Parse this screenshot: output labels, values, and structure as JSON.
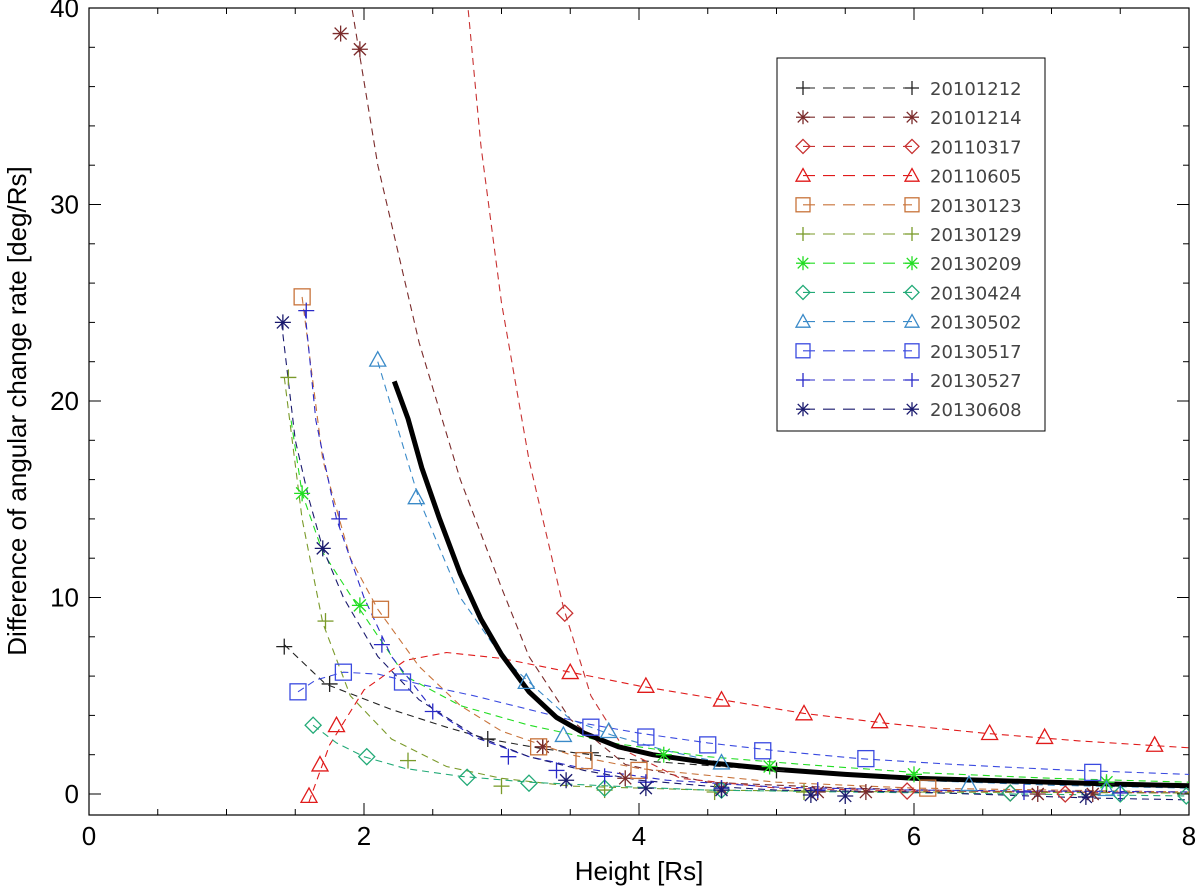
{
  "chart_data": {
    "type": "line",
    "title": "",
    "xlabel": "Height [Rs]",
    "ylabel": "Difference of angular change rate [deg/Rs]",
    "xlim": [
      0,
      8
    ],
    "ylim": [
      -1,
      40
    ],
    "xticks": [
      0,
      2,
      4,
      6,
      8
    ],
    "yticks": [
      0,
      10,
      20,
      30,
      40
    ],
    "xtick_labels": [
      "0",
      "2",
      "4",
      "6",
      "8"
    ],
    "ytick_labels": [
      "0",
      "10",
      "20",
      "30",
      "40"
    ],
    "grid": false,
    "legend_position": "top-right",
    "series": [
      {
        "name": "20101212",
        "color": "#222222",
        "marker": "plus",
        "curve": [
          [
            1.42,
            7.6
          ],
          [
            1.72,
            5.6
          ],
          [
            2.2,
            4.3
          ],
          [
            2.6,
            3.4
          ],
          [
            2.9,
            2.8
          ],
          [
            3.3,
            2.3
          ],
          [
            4,
            1.7
          ],
          [
            5,
            1.2
          ],
          [
            6,
            0.8
          ],
          [
            7,
            0.6
          ],
          [
            8,
            0.5
          ]
        ],
        "points": [
          [
            1.42,
            7.5
          ],
          [
            1.75,
            5.6
          ],
          [
            2.9,
            2.8
          ],
          [
            3.3,
            2.4
          ],
          [
            3.65,
            2.1
          ],
          [
            5,
            1.2
          ],
          [
            7.4,
            0.5
          ]
        ]
      },
      {
        "name": "20101214",
        "color": "#7a2a2a",
        "marker": "asterisk",
        "curve": [
          [
            1.9,
            40.5
          ],
          [
            2.1,
            32
          ],
          [
            2.4,
            23
          ],
          [
            2.7,
            16
          ],
          [
            3.0,
            10.5
          ],
          [
            3.2,
            7
          ],
          [
            3.5,
            3.8
          ],
          [
            3.9,
            1.5
          ],
          [
            4.5,
            0.6
          ],
          [
            5.5,
            0.3
          ],
          [
            6.5,
            0.15
          ],
          [
            8,
            0.05
          ]
        ],
        "points": [
          [
            1.83,
            38.7
          ],
          [
            1.97,
            37.9
          ],
          [
            3.3,
            2.4
          ],
          [
            3.9,
            0.8
          ],
          [
            4.6,
            0.3
          ],
          [
            5.3,
            0.1
          ],
          [
            5.65,
            0.1
          ],
          [
            6.9,
            0.0
          ],
          [
            7.3,
            0.0
          ]
        ]
      },
      {
        "name": "20110317",
        "color": "#c83232",
        "marker": "diamond",
        "curve": [
          [
            2.75,
            40.5
          ],
          [
            2.85,
            33
          ],
          [
            3.0,
            25
          ],
          [
            3.2,
            17
          ],
          [
            3.45,
            9.5
          ],
          [
            3.65,
            5
          ],
          [
            3.9,
            2.2
          ],
          [
            4.3,
            0.8
          ],
          [
            5,
            0.3
          ],
          [
            6,
            0.15
          ],
          [
            8,
            0.05
          ]
        ],
        "points": [
          [
            3.46,
            9.2
          ],
          [
            5.95,
            0.15
          ],
          [
            6.7,
            0.05
          ],
          [
            7.1,
            0.0
          ]
        ]
      },
      {
        "name": "20110605",
        "color": "#e01a1a",
        "marker": "triangle",
        "curve": [
          [
            1.6,
            -0.4
          ],
          [
            1.75,
            2.5
          ],
          [
            2.0,
            5.3
          ],
          [
            2.3,
            6.8
          ],
          [
            2.6,
            7.2
          ],
          [
            3.0,
            6.9
          ],
          [
            3.5,
            6.2
          ],
          [
            4.0,
            5.5
          ],
          [
            4.6,
            4.8
          ],
          [
            5.2,
            4.1
          ],
          [
            5.8,
            3.6
          ],
          [
            6.5,
            3.1
          ],
          [
            7.2,
            2.7
          ],
          [
            8,
            2.35
          ]
        ],
        "points": [
          [
            1.6,
            -0.1
          ],
          [
            1.68,
            1.5
          ],
          [
            1.8,
            3.5
          ],
          [
            3.5,
            6.2
          ],
          [
            4.05,
            5.5
          ],
          [
            4.6,
            4.8
          ],
          [
            5.2,
            4.1
          ],
          [
            5.75,
            3.7
          ],
          [
            6.55,
            3.1
          ],
          [
            6.95,
            2.9
          ],
          [
            7.75,
            2.5
          ]
        ]
      },
      {
        "name": "20130123",
        "color": "#c8733a",
        "marker": "square",
        "curve": [
          [
            1.55,
            25.3
          ],
          [
            1.7,
            17
          ],
          [
            1.9,
            12
          ],
          [
            2.1,
            9.4
          ],
          [
            2.4,
            6.5
          ],
          [
            2.7,
            4.5
          ],
          [
            3.0,
            3.2
          ],
          [
            3.5,
            2
          ],
          [
            4,
            1.3
          ],
          [
            5,
            0.6
          ],
          [
            6,
            0.3
          ],
          [
            8,
            0.1
          ]
        ],
        "points": [
          [
            1.55,
            25.3
          ],
          [
            2.12,
            9.4
          ],
          [
            3.27,
            2.4
          ],
          [
            3.6,
            1.7
          ],
          [
            4.0,
            1.2
          ],
          [
            6.1,
            0.3
          ]
        ]
      },
      {
        "name": "20130129",
        "color": "#7a9a2a",
        "marker": "plus",
        "curve": [
          [
            1.42,
            21.2
          ],
          [
            1.55,
            14
          ],
          [
            1.7,
            8.7
          ],
          [
            1.9,
            5
          ],
          [
            2.2,
            2.8
          ],
          [
            2.6,
            1.4
          ],
          [
            3.0,
            0.8
          ],
          [
            3.5,
            0.4
          ],
          [
            4.5,
            0.2
          ],
          [
            6,
            0.1
          ],
          [
            8,
            0.05
          ]
        ],
        "points": [
          [
            1.45,
            21.2
          ],
          [
            1.72,
            8.8
          ],
          [
            2.32,
            1.7
          ],
          [
            3.0,
            0.4
          ],
          [
            3.75,
            0.2
          ],
          [
            4.55,
            0.1
          ],
          [
            5.2,
            0.1
          ]
        ]
      },
      {
        "name": "20130209",
        "color": "#22dd22",
        "marker": "asterisk",
        "curve": [
          [
            1.47,
            19
          ],
          [
            1.55,
            15.3
          ],
          [
            1.7,
            12.3
          ],
          [
            1.95,
            9.6
          ],
          [
            2.3,
            6
          ],
          [
            2.7,
            4.5
          ],
          [
            3.2,
            3.5
          ],
          [
            3.8,
            2.6
          ],
          [
            4.5,
            1.9
          ],
          [
            5.2,
            1.5
          ],
          [
            6,
            1.1
          ],
          [
            7,
            0.8
          ],
          [
            8,
            0.6
          ]
        ],
        "points": [
          [
            1.55,
            15.3
          ],
          [
            1.97,
            9.6
          ],
          [
            4.18,
            2.0
          ],
          [
            4.95,
            1.4
          ],
          [
            6.0,
            1.0
          ],
          [
            7.4,
            0.6
          ]
        ]
      },
      {
        "name": "20130424",
        "color": "#22aa77",
        "marker": "diamond",
        "curve": [
          [
            1.63,
            3.5
          ],
          [
            1.8,
            2.6
          ],
          [
            2.0,
            1.9
          ],
          [
            2.3,
            1.3
          ],
          [
            2.7,
            0.9
          ],
          [
            3.2,
            0.6
          ],
          [
            3.8,
            0.4
          ],
          [
            4.5,
            0.2
          ],
          [
            5.5,
            0.1
          ],
          [
            8,
            -0.1
          ]
        ],
        "points": [
          [
            1.63,
            3.5
          ],
          [
            2.02,
            1.9
          ],
          [
            2.75,
            0.85
          ],
          [
            3.2,
            0.55
          ],
          [
            3.75,
            0.3
          ],
          [
            4.6,
            0.2
          ],
          [
            6.7,
            0.05
          ],
          [
            7.5,
            0.0
          ],
          [
            7.98,
            -0.1
          ]
        ]
      },
      {
        "name": "20130502",
        "color": "#3a8ac8",
        "marker": "triangle",
        "curve": [
          [
            2.1,
            22
          ],
          [
            2.25,
            18.5
          ],
          [
            2.4,
            15
          ],
          [
            2.7,
            10
          ],
          [
            3.0,
            7
          ],
          [
            3.2,
            5.7
          ],
          [
            3.5,
            3.8
          ],
          [
            3.8,
            3
          ],
          [
            4.2,
            2.2
          ],
          [
            4.6,
            1.6
          ],
          [
            5.2,
            1.1
          ],
          [
            6,
            0.7
          ],
          [
            7,
            0.45
          ],
          [
            8,
            0.3
          ]
        ],
        "points": [
          [
            2.1,
            22.1
          ],
          [
            2.38,
            15.1
          ],
          [
            3.18,
            5.7
          ],
          [
            3.45,
            3.0
          ],
          [
            3.78,
            3.2
          ],
          [
            4.6,
            1.6
          ],
          [
            6.4,
            0.5
          ],
          [
            7.4,
            0.25
          ]
        ]
      },
      {
        "name": "20130517",
        "color": "#3a4ae0",
        "marker": "square",
        "curve": [
          [
            1.52,
            5.2
          ],
          [
            1.65,
            5.8
          ],
          [
            1.85,
            6.2
          ],
          [
            2.1,
            6.1
          ],
          [
            2.4,
            5.6
          ],
          [
            2.8,
            5
          ],
          [
            3.2,
            4.3
          ],
          [
            3.6,
            3.6
          ],
          [
            4,
            3.1
          ],
          [
            4.5,
            2.6
          ],
          [
            5,
            2.2
          ],
          [
            5.6,
            1.8
          ],
          [
            6.3,
            1.5
          ],
          [
            7,
            1.25
          ],
          [
            8,
            1.0
          ]
        ],
        "points": [
          [
            1.52,
            5.2
          ],
          [
            1.85,
            6.2
          ],
          [
            2.28,
            5.7
          ],
          [
            3.65,
            3.4
          ],
          [
            4.05,
            2.9
          ],
          [
            4.5,
            2.5
          ],
          [
            4.9,
            2.2
          ],
          [
            5.65,
            1.8
          ],
          [
            7.3,
            1.1
          ]
        ]
      },
      {
        "name": "20130527",
        "color": "#2a2ac8",
        "marker": "plus",
        "curve": [
          [
            1.57,
            24.6
          ],
          [
            1.65,
            19
          ],
          [
            1.8,
            14
          ],
          [
            2.0,
            10
          ],
          [
            2.2,
            7
          ],
          [
            2.5,
            4.3
          ],
          [
            2.8,
            2.9
          ],
          [
            3.2,
            1.9
          ],
          [
            3.6,
            1.3
          ],
          [
            4.2,
            0.7
          ],
          [
            5,
            0.35
          ],
          [
            6,
            0.2
          ],
          [
            8,
            0.1
          ]
        ],
        "points": [
          [
            1.58,
            24.6
          ],
          [
            1.82,
            14
          ],
          [
            2.13,
            7.6
          ],
          [
            2.5,
            4.2
          ],
          [
            3.05,
            1.9
          ],
          [
            3.4,
            1.2
          ],
          [
            3.75,
            0.9
          ],
          [
            4.05,
            0.6
          ],
          [
            4.6,
            0.3
          ],
          [
            5.3,
            0.2
          ],
          [
            6.8,
            0.1
          ],
          [
            7.5,
            0.05
          ]
        ]
      },
      {
        "name": "20130608",
        "color": "#1a1a6e",
        "marker": "asterisk",
        "curve": [
          [
            1.4,
            24
          ],
          [
            1.5,
            18
          ],
          [
            1.6,
            15
          ],
          [
            1.7,
            12.5
          ],
          [
            1.85,
            10
          ],
          [
            2.1,
            7
          ],
          [
            2.4,
            4.8
          ],
          [
            2.8,
            3.0
          ],
          [
            3.2,
            1.9
          ],
          [
            3.6,
            1.2
          ],
          [
            4,
            0.7
          ],
          [
            4.5,
            0.4
          ],
          [
            5,
            0.2
          ],
          [
            6,
            0.1
          ],
          [
            7.25,
            -0.2
          ],
          [
            8,
            -0.3
          ]
        ],
        "points": [
          [
            1.41,
            24
          ],
          [
            1.7,
            12.5
          ],
          [
            3.47,
            0.7
          ],
          [
            4.05,
            0.3
          ],
          [
            4.6,
            0.2
          ],
          [
            5.25,
            -0.05
          ],
          [
            5.5,
            -0.1
          ],
          [
            7.25,
            -0.15
          ]
        ]
      }
    ],
    "fit_curve": {
      "color": "#000000",
      "points": [
        [
          2.22,
          21
        ],
        [
          2.32,
          19.1
        ],
        [
          2.42,
          16.6
        ],
        [
          2.55,
          14
        ],
        [
          2.7,
          11.2
        ],
        [
          2.85,
          8.9
        ],
        [
          3.0,
          7.1
        ],
        [
          3.2,
          5.2
        ],
        [
          3.4,
          3.9
        ],
        [
          3.6,
          3.1
        ],
        [
          3.85,
          2.4
        ],
        [
          4.1,
          2.0
        ],
        [
          4.5,
          1.6
        ],
        [
          5,
          1.25
        ],
        [
          5.5,
          1.0
        ],
        [
          6,
          0.8
        ],
        [
          6.5,
          0.7
        ],
        [
          7,
          0.6
        ],
        [
          7.5,
          0.5
        ],
        [
          8,
          0.42
        ]
      ]
    }
  }
}
